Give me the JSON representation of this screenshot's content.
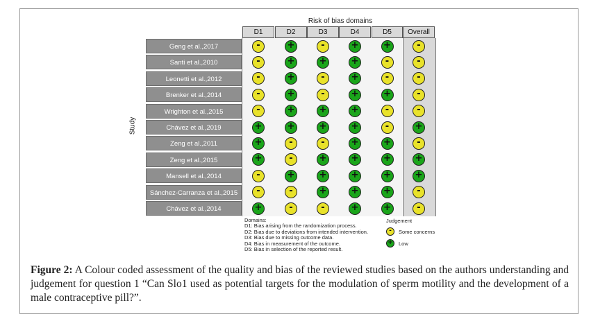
{
  "figure": {
    "title": "Risk of bias domains",
    "study_axis_label": "Study",
    "columns": [
      "D1",
      "D2",
      "D3",
      "D4",
      "D5",
      "Overall"
    ],
    "symbols": {
      "low": "+",
      "some": "-"
    },
    "colors": {
      "low": "#1aa51a",
      "some": "#e9e22a",
      "study_cell": "#8f8f8f",
      "header": "#d9d9d9"
    },
    "studies": [
      {
        "name": "Geng et al.,2017",
        "judgements": [
          "some",
          "low",
          "some",
          "low",
          "low",
          "some"
        ]
      },
      {
        "name": "Santi et al.,2010",
        "judgements": [
          "some",
          "low",
          "low",
          "low",
          "some",
          "some"
        ]
      },
      {
        "name": "Leonetti et al.,2012",
        "judgements": [
          "some",
          "low",
          "some",
          "low",
          "some",
          "some"
        ]
      },
      {
        "name": "Brenker et al.,2014",
        "judgements": [
          "some",
          "low",
          "some",
          "low",
          "low",
          "some"
        ]
      },
      {
        "name": "Wrighton et al.,2015",
        "judgements": [
          "some",
          "low",
          "low",
          "low",
          "some",
          "some"
        ]
      },
      {
        "name": "Chávez et al.,2019",
        "judgements": [
          "low",
          "low",
          "low",
          "low",
          "some",
          "low"
        ]
      },
      {
        "name": "Zeng et al.,2011",
        "judgements": [
          "low",
          "some",
          "some",
          "low",
          "low",
          "some"
        ]
      },
      {
        "name": "Zeng et al.,2015",
        "judgements": [
          "low",
          "some",
          "low",
          "low",
          "low",
          "low"
        ]
      },
      {
        "name": "Mansell et al.,2014",
        "judgements": [
          "some",
          "low",
          "low",
          "low",
          "low",
          "low"
        ]
      },
      {
        "name": "Sánchez-Carranza et al.,2015",
        "judgements": [
          "some",
          "some",
          "low",
          "low",
          "low",
          "some"
        ]
      },
      {
        "name": "Chávez et al.,2014",
        "judgements": [
          "low",
          "some",
          "some",
          "low",
          "low",
          "some"
        ]
      }
    ],
    "domains_legend": {
      "heading": "Domains:",
      "items": [
        "D1: Bias arising from the randomization process.",
        "D2: Bias due to deviations from intended intervention.",
        "D3: Bias due to missing outcome data.",
        "D4: Bias in measurement of the outcome.",
        "D5: Bias in selection of the reported result."
      ]
    },
    "judgement_legend": {
      "heading": "Judgement",
      "items": [
        {
          "symbol": "-",
          "level": "some",
          "label": "Some concerns"
        },
        {
          "symbol": "+",
          "level": "low",
          "label": "Low"
        }
      ]
    }
  },
  "caption": {
    "label": "Figure 2:",
    "text": " A Colour coded assessment of the quality and bias of the reviewed studies based on the authors understanding and judgement for question 1 “Can Slo1 used as potential targets for the modulation of sperm motility and the development of a male contraceptive pill?”."
  }
}
